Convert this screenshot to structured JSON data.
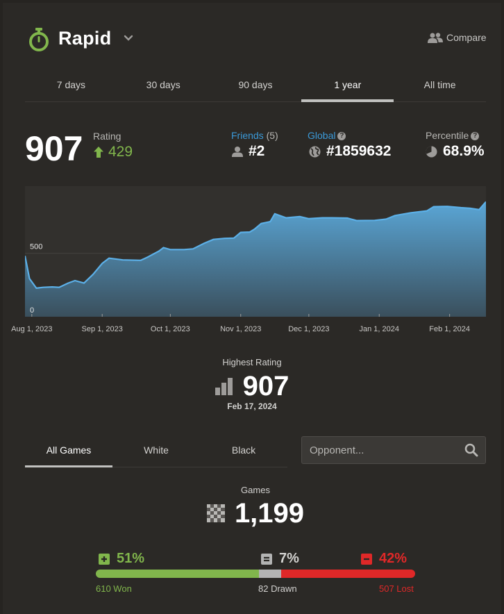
{
  "header": {
    "mode_title": "Rapid",
    "compare_label": "Compare",
    "icons": {
      "mode": "stopwatch-icon",
      "dropdown": "chevron-down-icon",
      "compare": "users-icon"
    }
  },
  "period_tabs": [
    "7 days",
    "30 days",
    "90 days",
    "1 year",
    "All time"
  ],
  "active_period": "1 year",
  "rating": {
    "value": "907",
    "label": "Rating",
    "change": "429"
  },
  "friends": {
    "label": "Friends",
    "count": "(5)",
    "rank": "#2"
  },
  "global": {
    "label": "Global",
    "rank": "#1859632"
  },
  "percentile": {
    "label": "Percentile",
    "value": "68.9%"
  },
  "chart_data": {
    "type": "area",
    "x_tick_labels": [
      "Aug 1, 2023",
      "Sep 1, 2023",
      "Oct 1, 2023",
      "Nov 1, 2023",
      "Dec 1, 2023",
      "Jan 1, 2024",
      "Feb 1, 2024"
    ],
    "y_tick_labels": [
      "500",
      "0"
    ],
    "ylim": [
      0,
      1030
    ],
    "grid": true,
    "points": [
      [
        "2023-07-29",
        480
      ],
      [
        "2023-07-31",
        300
      ],
      [
        "2023-08-03",
        225
      ],
      [
        "2023-08-06",
        232
      ],
      [
        "2023-08-10",
        235
      ],
      [
        "2023-08-13",
        232
      ],
      [
        "2023-08-17",
        265
      ],
      [
        "2023-08-20",
        285
      ],
      [
        "2023-08-24",
        265
      ],
      [
        "2023-08-28",
        335
      ],
      [
        "2023-09-01",
        420
      ],
      [
        "2023-09-04",
        462
      ],
      [
        "2023-09-10",
        448
      ],
      [
        "2023-09-18",
        445
      ],
      [
        "2023-09-21",
        470
      ],
      [
        "2023-09-26",
        518
      ],
      [
        "2023-09-28",
        545
      ],
      [
        "2023-10-01",
        530
      ],
      [
        "2023-10-07",
        530
      ],
      [
        "2023-10-11",
        535
      ],
      [
        "2023-10-16",
        580
      ],
      [
        "2023-10-20",
        610
      ],
      [
        "2023-10-25",
        618
      ],
      [
        "2023-10-29",
        620
      ],
      [
        "2023-11-01",
        665
      ],
      [
        "2023-11-05",
        668
      ],
      [
        "2023-11-07",
        690
      ],
      [
        "2023-11-10",
        735
      ],
      [
        "2023-11-14",
        750
      ],
      [
        "2023-11-16",
        812
      ],
      [
        "2023-11-21",
        780
      ],
      [
        "2023-11-27",
        790
      ],
      [
        "2023-12-01",
        773
      ],
      [
        "2023-12-07",
        780
      ],
      [
        "2023-12-11",
        780
      ],
      [
        "2023-12-18",
        778
      ],
      [
        "2023-12-22",
        758
      ],
      [
        "2023-12-30",
        760
      ],
      [
        "2024-01-04",
        770
      ],
      [
        "2024-01-08",
        798
      ],
      [
        "2024-01-15",
        820
      ],
      [
        "2024-01-22",
        835
      ],
      [
        "2024-01-25",
        868
      ],
      [
        "2024-01-31",
        870
      ],
      [
        "2024-02-06",
        860
      ],
      [
        "2024-02-10",
        855
      ],
      [
        "2024-02-14",
        845
      ],
      [
        "2024-02-17",
        907
      ]
    ]
  },
  "highest": {
    "label": "Highest Rating",
    "value": "907",
    "date": "Feb 17, 2024"
  },
  "game_tabs": [
    "All Games",
    "White",
    "Black"
  ],
  "active_game_tab": "All Games",
  "opponent_search": {
    "placeholder": "Opponent..."
  },
  "games": {
    "label": "Games",
    "total": "1,199",
    "won": {
      "percent": "51%",
      "count_label": "610 Won",
      "fraction": 0.51
    },
    "drawn": {
      "percent": "7%",
      "count_label": "82 Drawn",
      "fraction": 0.07
    },
    "lost": {
      "percent": "42%",
      "count_label": "507 Lost",
      "fraction": 0.42
    }
  },
  "colors": {
    "won": "#81b64c",
    "drawn": "#b3b3b3",
    "lost": "#e02828",
    "accent_blue": "#3b9ad9",
    "chart_line": "#5cb0e8"
  }
}
